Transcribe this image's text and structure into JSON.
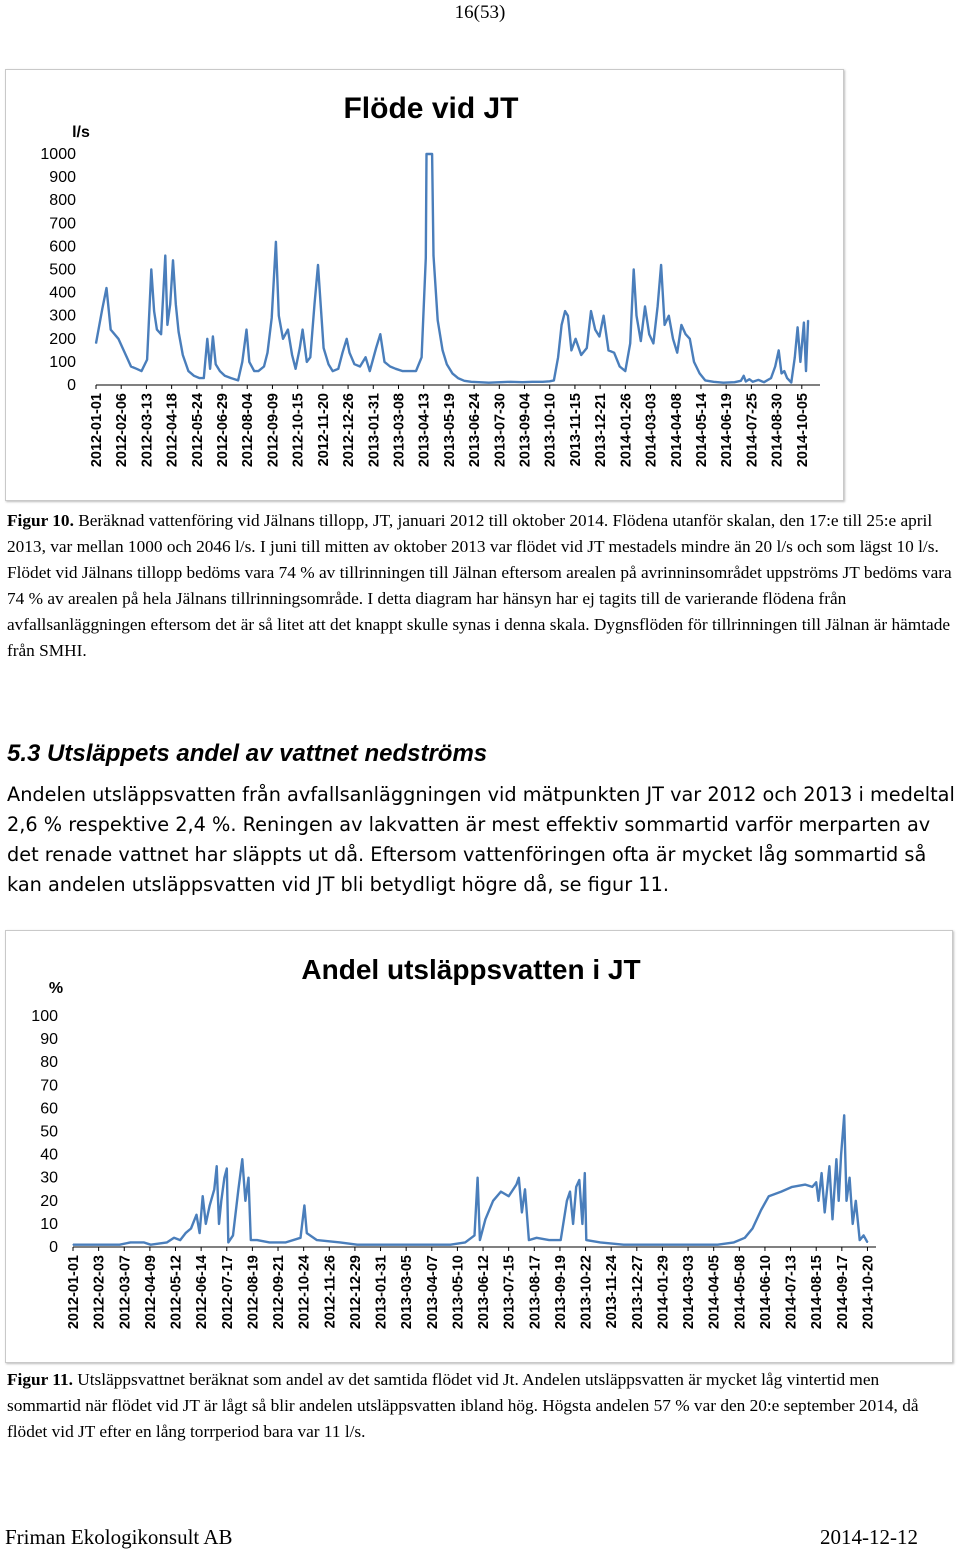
{
  "page_number": "16(53)",
  "figure10": {
    "label": "Figur 10.",
    "text": " Beräknad vattenföring vid Jälnans tillopp, JT, januari 2012 till oktober 2014. Flödena utanför skalan, den 17:e till 25:e april 2013, var mellan 1000 och 2046 l/s.  I juni till mitten av oktober 2013 var flödet vid JT mestadels mindre än 20 l/s och som lägst 10 l/s. Flödet vid Jälnans tillopp bedöms vara 74 % av tillrinningen till Jälnan eftersom arealen på avrinninsområdet uppströms JT bedöms vara 74 % av arealen på hela Jälnans tillrinningsområde. I detta diagram har hänsyn har ej tagits till de varierande flödena från avfallsanläggningen eftersom det är så litet att det knappt skulle synas i denna skala. Dygnsflöden för tillrinningen till Jälnan är hämtade från SMHI."
  },
  "section": {
    "heading": "5.3 Utsläppets andel av vattnet nedströms",
    "body": "Andelen utsläppsvatten från avfallsanläggningen vid mätpunkten JT var 2012 och 2013 i medeltal 2,6 % respektive 2,4 %. Reningen av lakvatten är mest effektiv sommartid varför merparten av det renade vattnet har släppts ut då. Eftersom vattenföringen ofta är mycket låg sommartid så kan andelen utsläppsvatten vid JT bli betydligt högre då, se figur 11."
  },
  "figure11": {
    "label": "Figur 11.",
    "text": " Utsläppsvattnet beräknat som andel av det samtida flödet vid Jt. Andelen utsläppsvatten är mycket låg vintertid men sommartid när flödet vid JT är lågt så blir andelen utsläppsvatten ibland hög. Högsta andelen 57 % var den 20:e september 2014, då flödet vid JT efter en lång torrperiod bara var 11 l/s."
  },
  "footer": {
    "company": "Friman Ekologikonsult AB",
    "date": "2014-12-12"
  },
  "chart_data": [
    {
      "type": "line",
      "title": "Flöde vid JT",
      "ylabel": "l/s",
      "ylim": [
        0,
        1000
      ],
      "yticks": [
        0,
        100,
        200,
        300,
        400,
        500,
        600,
        700,
        800,
        900,
        1000
      ],
      "xlim": [
        "2012-01-01",
        "2014-10-31"
      ],
      "xticks": [
        "2012-01-01",
        "2012-02-06",
        "2012-03-13",
        "2012-04-18",
        "2012-05-24",
        "2012-06-29",
        "2012-08-04",
        "2012-09-09",
        "2012-10-15",
        "2012-11-20",
        "2012-12-26",
        "2013-01-31",
        "2013-03-08",
        "2013-04-13",
        "2013-05-19",
        "2013-06-24",
        "2013-07-30",
        "2013-09-04",
        "2013-10-10",
        "2013-11-15",
        "2013-12-21",
        "2014-01-26",
        "2014-03-03",
        "2014-04-08",
        "2014-05-14",
        "2014-06-19",
        "2014-07-25",
        "2014-08-30",
        "2014-10-05"
      ],
      "color": "#4a7ebb",
      "points": [
        [
          "2012-01-01",
          180
        ],
        [
          "2012-01-10",
          330
        ],
        [
          "2012-01-16",
          420
        ],
        [
          "2012-01-22",
          240
        ],
        [
          "2012-02-02",
          200
        ],
        [
          "2012-02-08",
          160
        ],
        [
          "2012-02-20",
          80
        ],
        [
          "2012-02-28",
          70
        ],
        [
          "2012-03-06",
          60
        ],
        [
          "2012-03-14",
          110
        ],
        [
          "2012-03-20",
          500
        ],
        [
          "2012-03-24",
          320
        ],
        [
          "2012-03-28",
          240
        ],
        [
          "2012-04-03",
          220
        ],
        [
          "2012-04-09",
          560
        ],
        [
          "2012-04-12",
          260
        ],
        [
          "2012-04-16",
          350
        ],
        [
          "2012-04-20",
          540
        ],
        [
          "2012-04-24",
          350
        ],
        [
          "2012-04-28",
          230
        ],
        [
          "2012-05-04",
          130
        ],
        [
          "2012-05-12",
          60
        ],
        [
          "2012-05-20",
          40
        ],
        [
          "2012-05-28",
          30
        ],
        [
          "2012-06-03",
          30
        ],
        [
          "2012-06-08",
          200
        ],
        [
          "2012-06-12",
          70
        ],
        [
          "2012-06-16",
          210
        ],
        [
          "2012-06-20",
          90
        ],
        [
          "2012-06-26",
          60
        ],
        [
          "2012-07-03",
          40
        ],
        [
          "2012-07-12",
          30
        ],
        [
          "2012-07-22",
          20
        ],
        [
          "2012-07-28",
          100
        ],
        [
          "2012-08-03",
          240
        ],
        [
          "2012-08-07",
          100
        ],
        [
          "2012-08-14",
          60
        ],
        [
          "2012-08-20",
          60
        ],
        [
          "2012-08-28",
          80
        ],
        [
          "2012-09-02",
          140
        ],
        [
          "2012-09-08",
          290
        ],
        [
          "2012-09-14",
          620
        ],
        [
          "2012-09-18",
          300
        ],
        [
          "2012-09-24",
          200
        ],
        [
          "2012-10-01",
          240
        ],
        [
          "2012-10-07",
          130
        ],
        [
          "2012-10-12",
          70
        ],
        [
          "2012-10-18",
          160
        ],
        [
          "2012-10-22",
          240
        ],
        [
          "2012-10-28",
          100
        ],
        [
          "2012-11-02",
          120
        ],
        [
          "2012-11-08",
          350
        ],
        [
          "2012-11-13",
          520
        ],
        [
          "2012-11-17",
          340
        ],
        [
          "2012-11-21",
          160
        ],
        [
          "2012-11-28",
          90
        ],
        [
          "2012-12-04",
          60
        ],
        [
          "2012-12-12",
          70
        ],
        [
          "2012-12-18",
          140
        ],
        [
          "2012-12-24",
          200
        ],
        [
          "2012-12-28",
          140
        ],
        [
          "2013-01-04",
          90
        ],
        [
          "2013-01-12",
          80
        ],
        [
          "2013-01-20",
          120
        ],
        [
          "2013-01-26",
          60
        ],
        [
          "2013-02-04",
          160
        ],
        [
          "2013-02-10",
          220
        ],
        [
          "2013-02-16",
          100
        ],
        [
          "2013-02-24",
          80
        ],
        [
          "2013-03-04",
          70
        ],
        [
          "2013-03-14",
          60
        ],
        [
          "2013-03-24",
          60
        ],
        [
          "2013-04-02",
          60
        ],
        [
          "2013-04-10",
          120
        ],
        [
          "2013-04-16",
          550
        ],
        [
          "2013-04-17",
          1000
        ],
        [
          "2013-04-25",
          1000
        ],
        [
          "2013-04-27",
          560
        ],
        [
          "2013-05-03",
          280
        ],
        [
          "2013-05-10",
          150
        ],
        [
          "2013-05-16",
          90
        ],
        [
          "2013-05-24",
          50
        ],
        [
          "2013-06-01",
          30
        ],
        [
          "2013-06-10",
          18
        ],
        [
          "2013-06-20",
          14
        ],
        [
          "2013-07-01",
          12
        ],
        [
          "2013-07-15",
          10
        ],
        [
          "2013-08-01",
          12
        ],
        [
          "2013-08-15",
          14
        ],
        [
          "2013-09-01",
          12
        ],
        [
          "2013-09-15",
          14
        ],
        [
          "2013-09-30",
          14
        ],
        [
          "2013-10-10",
          16
        ],
        [
          "2013-10-16",
          20
        ],
        [
          "2013-10-22",
          120
        ],
        [
          "2013-10-27",
          260
        ],
        [
          "2013-11-01",
          320
        ],
        [
          "2013-11-05",
          300
        ],
        [
          "2013-11-10",
          150
        ],
        [
          "2013-11-16",
          200
        ],
        [
          "2013-11-24",
          130
        ],
        [
          "2013-12-02",
          160
        ],
        [
          "2013-12-08",
          320
        ],
        [
          "2013-12-14",
          240
        ],
        [
          "2013-12-20",
          210
        ],
        [
          "2013-12-26",
          300
        ],
        [
          "2014-01-02",
          150
        ],
        [
          "2014-01-10",
          140
        ],
        [
          "2014-01-18",
          80
        ],
        [
          "2014-01-26",
          60
        ],
        [
          "2014-02-02",
          180
        ],
        [
          "2014-02-07",
          500
        ],
        [
          "2014-02-11",
          300
        ],
        [
          "2014-02-17",
          190
        ],
        [
          "2014-02-23",
          340
        ],
        [
          "2014-03-01",
          220
        ],
        [
          "2014-03-07",
          180
        ],
        [
          "2014-03-13",
          340
        ],
        [
          "2014-03-18",
          520
        ],
        [
          "2014-03-23",
          260
        ],
        [
          "2014-03-29",
          300
        ],
        [
          "2014-04-04",
          200
        ],
        [
          "2014-04-10",
          140
        ],
        [
          "2014-04-16",
          260
        ],
        [
          "2014-04-22",
          220
        ],
        [
          "2014-04-28",
          200
        ],
        [
          "2014-05-04",
          100
        ],
        [
          "2014-05-12",
          50
        ],
        [
          "2014-05-20",
          20
        ],
        [
          "2014-06-01",
          14
        ],
        [
          "2014-06-15",
          10
        ],
        [
          "2014-07-01",
          12
        ],
        [
          "2014-07-10",
          18
        ],
        [
          "2014-07-14",
          40
        ],
        [
          "2014-07-17",
          15
        ],
        [
          "2014-07-22",
          25
        ],
        [
          "2014-07-27",
          14
        ],
        [
          "2014-08-04",
          22
        ],
        [
          "2014-08-12",
          12
        ],
        [
          "2014-08-22",
          30
        ],
        [
          "2014-08-28",
          80
        ],
        [
          "2014-09-02",
          150
        ],
        [
          "2014-09-06",
          50
        ],
        [
          "2014-09-10",
          60
        ],
        [
          "2014-09-14",
          30
        ],
        [
          "2014-09-20",
          11
        ],
        [
          "2014-09-25",
          120
        ],
        [
          "2014-09-29",
          250
        ],
        [
          "2014-10-03",
          100
        ],
        [
          "2014-10-08",
          270
        ],
        [
          "2014-10-11",
          60
        ],
        [
          "2014-10-14",
          280
        ]
      ]
    },
    {
      "type": "line",
      "title": "Andel utsläppsvatten i JT",
      "ylabel": "%",
      "ylim": [
        0,
        100
      ],
      "yticks": [
        0,
        10,
        20,
        30,
        40,
        50,
        60,
        70,
        80,
        90,
        100
      ],
      "xlim": [
        "2012-01-01",
        "2014-10-31"
      ],
      "xticks": [
        "2012-01-01",
        "2012-02-03",
        "2012-03-07",
        "2012-04-09",
        "2012-05-12",
        "2012-06-14",
        "2012-07-17",
        "2012-08-19",
        "2012-09-21",
        "2012-10-24",
        "2012-11-26",
        "2012-12-29",
        "2013-01-31",
        "2013-03-05",
        "2013-04-07",
        "2013-05-10",
        "2013-06-12",
        "2013-07-15",
        "2013-08-17",
        "2013-09-19",
        "2013-10-22",
        "2013-11-24",
        "2013-12-27",
        "2014-01-29",
        "2014-03-03",
        "2014-04-05",
        "2014-05-08",
        "2014-06-10",
        "2014-07-13",
        "2014-08-15",
        "2014-09-17",
        "2014-10-20"
      ],
      "color": "#4a7ebb",
      "points": [
        [
          "2012-01-01",
          1
        ],
        [
          "2012-02-01",
          1
        ],
        [
          "2012-03-01",
          1
        ],
        [
          "2012-03-15",
          2
        ],
        [
          "2012-04-01",
          2
        ],
        [
          "2012-04-10",
          1
        ],
        [
          "2012-05-01",
          2
        ],
        [
          "2012-05-10",
          4
        ],
        [
          "2012-05-18",
          3
        ],
        [
          "2012-05-25",
          6
        ],
        [
          "2012-06-01",
          8
        ],
        [
          "2012-06-08",
          14
        ],
        [
          "2012-06-12",
          6
        ],
        [
          "2012-06-16",
          22
        ],
        [
          "2012-06-20",
          10
        ],
        [
          "2012-06-25",
          18
        ],
        [
          "2012-07-01",
          25
        ],
        [
          "2012-07-04",
          35
        ],
        [
          "2012-07-07",
          10
        ],
        [
          "2012-07-10",
          20
        ],
        [
          "2012-07-14",
          30
        ],
        [
          "2012-07-17",
          34
        ],
        [
          "2012-07-19",
          2
        ],
        [
          "2012-07-25",
          5
        ],
        [
          "2012-08-01",
          25
        ],
        [
          "2012-08-06",
          38
        ],
        [
          "2012-08-10",
          20
        ],
        [
          "2012-08-14",
          30
        ],
        [
          "2012-08-17",
          3
        ],
        [
          "2012-08-25",
          3
        ],
        [
          "2012-09-10",
          2
        ],
        [
          "2012-10-01",
          2
        ],
        [
          "2012-10-20",
          4
        ],
        [
          "2012-10-25",
          18
        ],
        [
          "2012-10-28",
          6
        ],
        [
          "2012-11-10",
          3
        ],
        [
          "2012-12-10",
          2
        ],
        [
          "2013-01-01",
          1
        ],
        [
          "2013-02-01",
          1
        ],
        [
          "2013-03-01",
          1
        ],
        [
          "2013-04-01",
          1
        ],
        [
          "2013-05-01",
          1
        ],
        [
          "2013-05-20",
          2
        ],
        [
          "2013-06-01",
          5
        ],
        [
          "2013-06-05",
          30
        ],
        [
          "2013-06-08",
          3
        ],
        [
          "2013-06-15",
          12
        ],
        [
          "2013-06-25",
          20
        ],
        [
          "2013-07-05",
          24
        ],
        [
          "2013-07-15",
          22
        ],
        [
          "2013-07-25",
          27
        ],
        [
          "2013-07-28",
          30
        ],
        [
          "2013-08-01",
          15
        ],
        [
          "2013-08-05",
          25
        ],
        [
          "2013-08-10",
          3
        ],
        [
          "2013-08-20",
          4
        ],
        [
          "2013-09-05",
          3
        ],
        [
          "2013-09-20",
          3
        ],
        [
          "2013-09-28",
          20
        ],
        [
          "2013-10-02",
          24
        ],
        [
          "2013-10-06",
          10
        ],
        [
          "2013-10-10",
          26
        ],
        [
          "2013-10-14",
          29
        ],
        [
          "2013-10-18",
          10
        ],
        [
          "2013-10-21",
          32
        ],
        [
          "2013-10-23",
          3
        ],
        [
          "2013-11-10",
          2
        ],
        [
          "2013-12-10",
          1
        ],
        [
          "2014-01-10",
          1
        ],
        [
          "2014-02-10",
          1
        ],
        [
          "2014-03-10",
          1
        ],
        [
          "2014-04-10",
          1
        ],
        [
          "2014-05-01",
          2
        ],
        [
          "2014-05-15",
          4
        ],
        [
          "2014-05-25",
          8
        ],
        [
          "2014-06-05",
          16
        ],
        [
          "2014-06-15",
          22
        ],
        [
          "2014-07-01",
          24
        ],
        [
          "2014-07-15",
          26
        ],
        [
          "2014-08-01",
          27
        ],
        [
          "2014-08-10",
          26
        ],
        [
          "2014-08-15",
          28
        ],
        [
          "2014-08-18",
          20
        ],
        [
          "2014-08-22",
          32
        ],
        [
          "2014-08-26",
          15
        ],
        [
          "2014-09-01",
          35
        ],
        [
          "2014-09-05",
          12
        ],
        [
          "2014-09-10",
          38
        ],
        [
          "2014-09-13",
          20
        ],
        [
          "2014-09-16",
          40
        ],
        [
          "2014-09-20",
          57
        ],
        [
          "2014-09-23",
          20
        ],
        [
          "2014-09-27",
          30
        ],
        [
          "2014-10-01",
          10
        ],
        [
          "2014-10-05",
          20
        ],
        [
          "2014-10-10",
          3
        ],
        [
          "2014-10-15",
          5
        ],
        [
          "2014-10-20",
          2
        ]
      ]
    }
  ]
}
